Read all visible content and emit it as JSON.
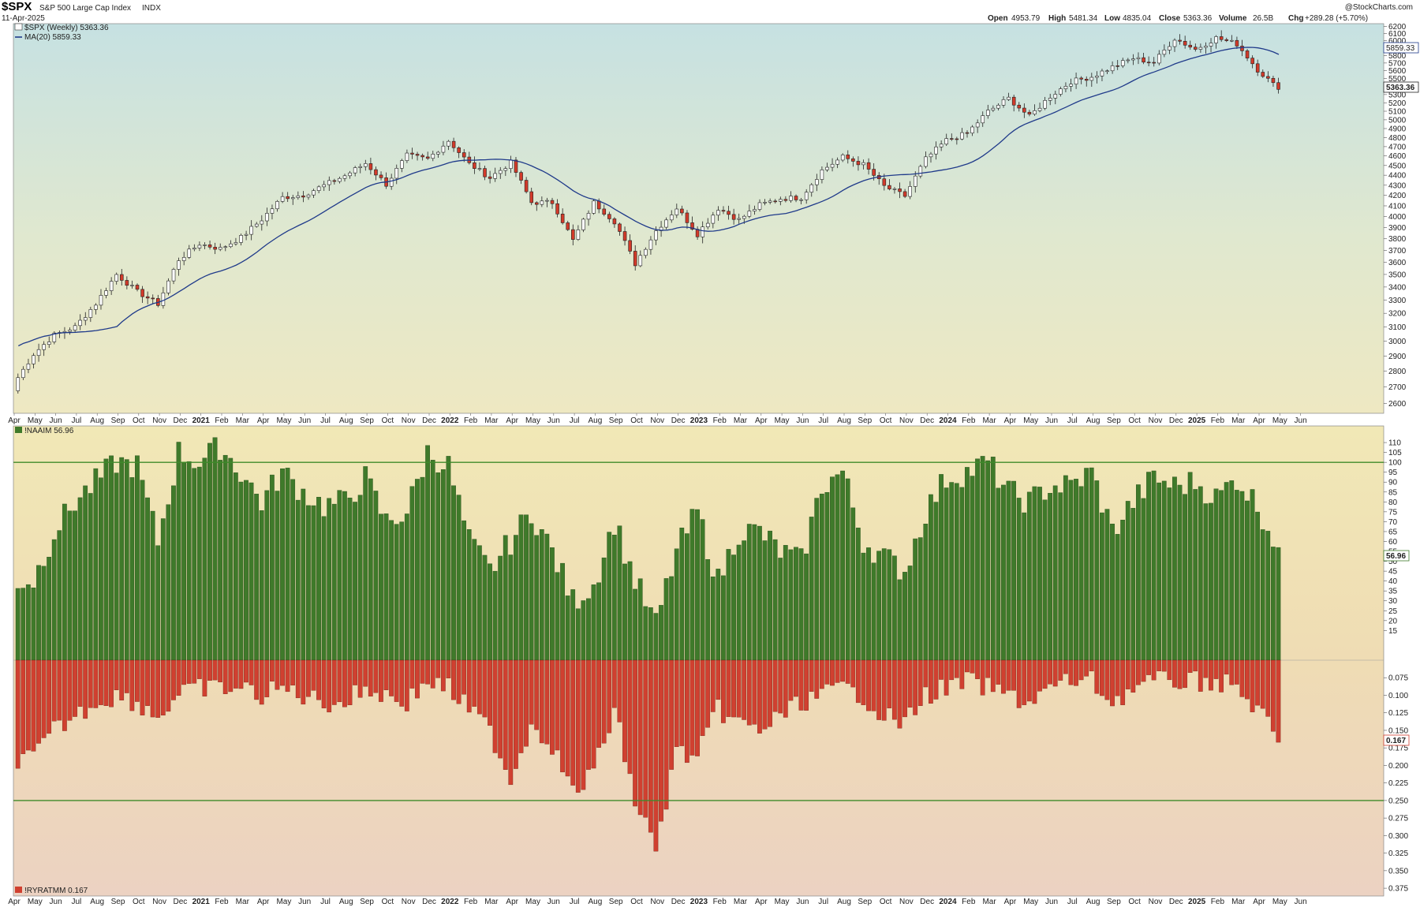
{
  "header": {
    "symbol": "$SPX",
    "name": "S&P 500 Large Cap Index",
    "exchange": "INDX",
    "date": "11-Apr-2025",
    "watermark": "@StockCharts.com",
    "open_label": "Open",
    "open": "4953.79",
    "high_label": "High",
    "high": "5481.34",
    "low_label": "Low",
    "low": "4835.04",
    "close_label": "Close",
    "close": "5363.36",
    "volume_label": "Volume",
    "volume": "26.5B",
    "chg_label": "Chg",
    "chg": "+289.28 (+5.70%)"
  },
  "legends": {
    "price": "$SPX (Weekly) 5363.36",
    "ma": "MA(20) 5859.33",
    "naaim": "!NAAIM 56.96",
    "ryratmm": "!RYRATMM 0.167"
  },
  "badges": {
    "last_price": "5363.36",
    "last_ma": "5859.33",
    "last_naaim": "56.96",
    "last_ryratmm": "0.167"
  },
  "colors": {
    "up_candle": "#ffffff",
    "down_candle": "#d23a2a",
    "ma_line": "#1f3a8a",
    "naaim_bar": "#3f7a2a",
    "ryratmm_bar": "#d04030",
    "ref_line": "#3f8a2a"
  },
  "chart_data": [
    {
      "type": "candlestick",
      "title": "$SPX (Weekly)",
      "y_ticks": [
        2600,
        2700,
        2800,
        2900,
        3000,
        3100,
        3200,
        3300,
        3400,
        3500,
        3600,
        3700,
        3800,
        3900,
        4000,
        4100,
        4200,
        4300,
        4400,
        4500,
        4600,
        4700,
        4800,
        4900,
        5000,
        5100,
        5200,
        5300,
        5400,
        5500,
        5600,
        5700,
        5800,
        5900,
        6000,
        6100,
        6200
      ],
      "ylim": [
        2550,
        6230
      ],
      "scale": "log",
      "x_labels": [
        "Apr",
        "May",
        "Jun",
        "Jul",
        "Aug",
        "Sep",
        "Oct",
        "Nov",
        "Dec",
        "2021",
        "Feb",
        "Mar",
        "Apr",
        "May",
        "Jun",
        "Jul",
        "Aug",
        "Sep",
        "Oct",
        "Nov",
        "Dec",
        "2022",
        "Feb",
        "Mar",
        "Apr",
        "May",
        "Jun",
        "Jul",
        "Aug",
        "Sep",
        "Oct",
        "Nov",
        "Dec",
        "2023",
        "Feb",
        "Mar",
        "Apr",
        "May",
        "Jun",
        "Jul",
        "Aug",
        "Sep",
        "Oct",
        "Nov",
        "Dec",
        "2024",
        "Feb",
        "Mar",
        "Apr",
        "May",
        "Jun",
        "Jul",
        "Aug",
        "Sep",
        "Oct",
        "Nov",
        "Dec",
        "2025",
        "Feb",
        "Mar",
        "Apr",
        "May",
        "Jun"
      ],
      "monthly_close": [
        2912,
        3044,
        3100,
        3271,
        3500,
        3363,
        3270,
        3622,
        3756,
        3714,
        3811,
        3973,
        4181,
        4204,
        4298,
        4395,
        4523,
        4308,
        4605,
        4567,
        4766,
        4516,
        4374,
        4530,
        4132,
        4132,
        3785,
        4130,
        3955,
        3586,
        3872,
        4080,
        3840,
        4077,
        3970,
        4109,
        4169,
        4180,
        4450,
        4589,
        4508,
        4288,
        4194,
        4568,
        4770,
        4846,
        5096,
        5254,
        5036,
        5278,
        5460,
        5522,
        5648,
        5762,
        5705,
        6032,
        5882,
        6040,
        5955,
        5612,
        5363
      ],
      "last_close": 5363.36,
      "series": [
        {
          "name": "$SPX (Weekly)",
          "last": 5363.36
        },
        {
          "name": "MA(20)",
          "last": 5859.33
        }
      ]
    },
    {
      "type": "bar",
      "title": "!NAAIM",
      "y_ticks": [
        15,
        20,
        25,
        30,
        35,
        40,
        45,
        50,
        55,
        60,
        65,
        70,
        75,
        80,
        85,
        90,
        95,
        100,
        105,
        110
      ],
      "ylim": [
        0,
        118
      ],
      "reference_line": 100,
      "monthly_values": [
        40,
        65,
        80,
        90,
        100,
        98,
        60,
        105,
        100,
        108,
        95,
        80,
        95,
        85,
        78,
        80,
        92,
        70,
        75,
        105,
        98,
        60,
        45,
        60,
        75,
        55,
        30,
        38,
        70,
        40,
        18,
        55,
        75,
        40,
        65,
        65,
        55,
        50,
        88,
        95,
        60,
        52,
        45,
        75,
        92,
        95,
        100,
        85,
        80,
        88,
        88,
        95,
        65,
        80,
        92,
        88,
        90,
        82,
        92,
        78,
        56.96
      ],
      "last": 56.96
    },
    {
      "type": "bar",
      "title": "!RYRATMM",
      "y_ticks": [
        0.075,
        0.1,
        0.125,
        0.15,
        0.175,
        0.2,
        0.225,
        0.25,
        0.275,
        0.3,
        0.325,
        0.35,
        0.375
      ],
      "ylim": [
        0.05,
        0.385
      ],
      "inverted": true,
      "reference_line": 0.25,
      "monthly_values": [
        0.19,
        0.15,
        0.13,
        0.11,
        0.1,
        0.11,
        0.13,
        0.1,
        0.09,
        0.09,
        0.09,
        0.1,
        0.09,
        0.1,
        0.11,
        0.11,
        0.09,
        0.1,
        0.11,
        0.08,
        0.09,
        0.12,
        0.15,
        0.22,
        0.14,
        0.17,
        0.24,
        0.21,
        0.12,
        0.25,
        0.32,
        0.18,
        0.19,
        0.12,
        0.14,
        0.15,
        0.13,
        0.11,
        0.1,
        0.09,
        0.1,
        0.13,
        0.14,
        0.1,
        0.09,
        0.08,
        0.09,
        0.1,
        0.11,
        0.09,
        0.08,
        0.08,
        0.11,
        0.09,
        0.08,
        0.08,
        0.08,
        0.08,
        0.09,
        0.12,
        0.167
      ],
      "last": 0.167
    }
  ]
}
